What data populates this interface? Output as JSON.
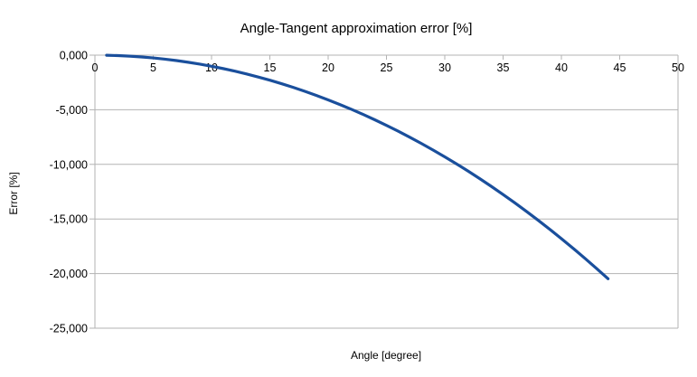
{
  "chart_data": {
    "type": "line",
    "title": "Angle-Tangent approximation error [%]",
    "xlabel": "Angle [degree]",
    "ylabel": "Error [%]",
    "xlim": [
      0,
      50
    ],
    "ylim": [
      -25,
      0
    ],
    "x_ticks": [
      0,
      5,
      10,
      15,
      20,
      25,
      30,
      35,
      40,
      45,
      50
    ],
    "x_tick_labels": [
      "0",
      "5",
      "10",
      "15",
      "20",
      "25",
      "30",
      "35",
      "40",
      "45",
      "50"
    ],
    "y_ticks": [
      0,
      -5,
      -10,
      -15,
      -20,
      -25
    ],
    "y_tick_labels": [
      "0,000",
      "-5,000",
      "-10,000",
      "-15,000",
      "-20,000",
      "-25,000"
    ],
    "grid": "horizontal-only",
    "legend": "none",
    "colors": {
      "line": "#1a4f9c",
      "grid": "#b3b3b3",
      "text": "#000000",
      "background": "#ffffff"
    },
    "series": [
      {
        "name": "Angle-Tangent approximation error",
        "x": [
          1,
          2,
          3,
          4,
          5,
          6,
          7,
          8,
          9,
          10,
          11,
          12,
          13,
          14,
          15,
          16,
          17,
          18,
          19,
          20,
          21,
          22,
          23,
          24,
          25,
          26,
          27,
          28,
          29,
          30,
          31,
          32,
          33,
          34,
          35,
          36,
          37,
          38,
          39,
          40,
          41,
          42,
          43,
          44
        ],
        "y": [
          -0.01,
          -0.041,
          -0.091,
          -0.163,
          -0.254,
          -0.366,
          -0.498,
          -0.651,
          -0.824,
          -1.018,
          -1.232,
          -1.466,
          -1.722,
          -1.998,
          -2.295,
          -2.613,
          -2.952,
          -3.312,
          -3.693,
          -4.095,
          -4.519,
          -4.963,
          -5.43,
          -5.918,
          -6.428,
          -6.96,
          -7.514,
          -8.09,
          -8.689,
          -9.31,
          -9.954,
          -10.62,
          -11.31,
          -12.023,
          -12.759,
          -13.519,
          -14.303,
          -15.111,
          -15.943,
          -16.8,
          -17.681,
          -18.588,
          -19.52,
          -20.477
        ]
      }
    ]
  }
}
